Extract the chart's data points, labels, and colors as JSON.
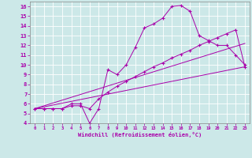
{
  "bg_color": "#cce8e8",
  "line_color": "#aa00aa",
  "xlabel": "Windchill (Refroidissement éolien,°C)",
  "xlim": [
    -0.5,
    23.5
  ],
  "ylim": [
    4,
    16.5
  ],
  "xticks": [
    0,
    1,
    2,
    3,
    4,
    5,
    6,
    7,
    8,
    9,
    10,
    11,
    12,
    13,
    14,
    15,
    16,
    17,
    18,
    19,
    20,
    21,
    22,
    23
  ],
  "yticks": [
    4,
    5,
    6,
    7,
    8,
    9,
    10,
    11,
    12,
    13,
    14,
    15,
    16
  ],
  "curve1_x": [
    0,
    1,
    2,
    3,
    4,
    5,
    6,
    7,
    8,
    9,
    10,
    11,
    12,
    13,
    14,
    15,
    16,
    17,
    18,
    19,
    20,
    21,
    22,
    23
  ],
  "curve1_y": [
    5.5,
    5.5,
    5.5,
    5.5,
    6.0,
    6.0,
    4.0,
    5.5,
    9.5,
    9.0,
    10.0,
    11.8,
    13.8,
    14.2,
    14.8,
    16.0,
    16.1,
    15.5,
    13.0,
    12.5,
    12.0,
    12.0,
    11.0,
    10.0
  ],
  "curve2_x": [
    0,
    1,
    2,
    3,
    4,
    5,
    6,
    7,
    8,
    9,
    10,
    11,
    12,
    13,
    14,
    15,
    16,
    17,
    18,
    19,
    20,
    21,
    22,
    23
  ],
  "curve2_y": [
    5.5,
    5.5,
    5.5,
    5.5,
    5.8,
    5.8,
    5.5,
    6.5,
    7.2,
    7.8,
    8.3,
    8.8,
    9.3,
    9.8,
    10.2,
    10.7,
    11.1,
    11.5,
    12.0,
    12.4,
    12.8,
    13.2,
    13.6,
    9.8
  ],
  "line3_x": [
    0,
    23
  ],
  "line3_y": [
    5.5,
    9.8
  ],
  "line4_x": [
    0,
    23
  ],
  "line4_y": [
    5.5,
    12.2
  ]
}
